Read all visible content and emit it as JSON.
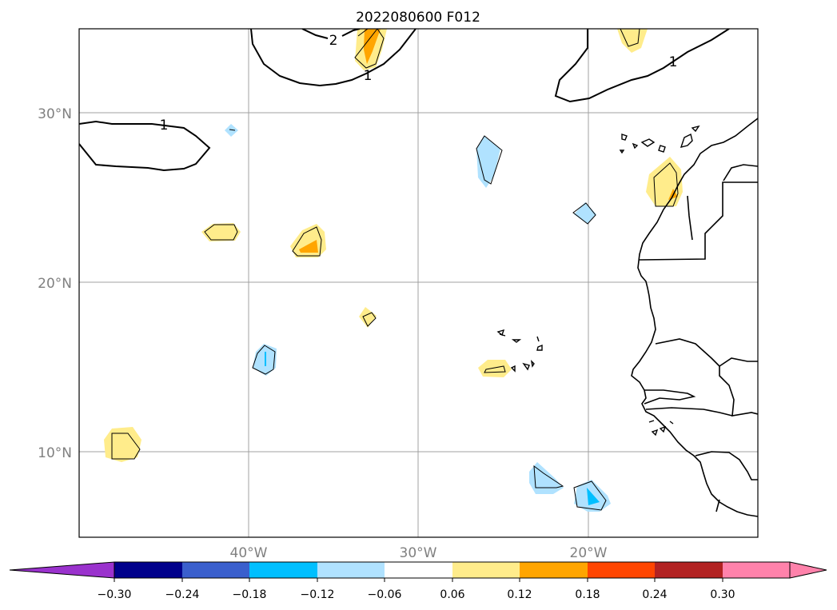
{
  "title": "2022080600 F012",
  "map": {
    "lat_labels": [
      "30°N",
      "20°N",
      "10°N"
    ],
    "lon_labels": [
      "40°W",
      "30°W",
      "20°W"
    ],
    "contour_labels": [
      "1",
      "2",
      "1",
      "1"
    ]
  },
  "colorbar": {
    "tick_labels": [
      "−0.30",
      "−0.24",
      "−0.18",
      "−0.12",
      "−0.06",
      "0.06",
      "0.12",
      "0.18",
      "0.24",
      "0.30"
    ],
    "colors": [
      "#9a32cd",
      "#00008b",
      "#3a5fcd",
      "#00bfff",
      "#b0e2ff",
      "#ffffff",
      "#ffec8b",
      "#ffa500",
      "#ff4500",
      "#b22222",
      "#ff82ab",
      "#ff82ab"
    ]
  }
}
